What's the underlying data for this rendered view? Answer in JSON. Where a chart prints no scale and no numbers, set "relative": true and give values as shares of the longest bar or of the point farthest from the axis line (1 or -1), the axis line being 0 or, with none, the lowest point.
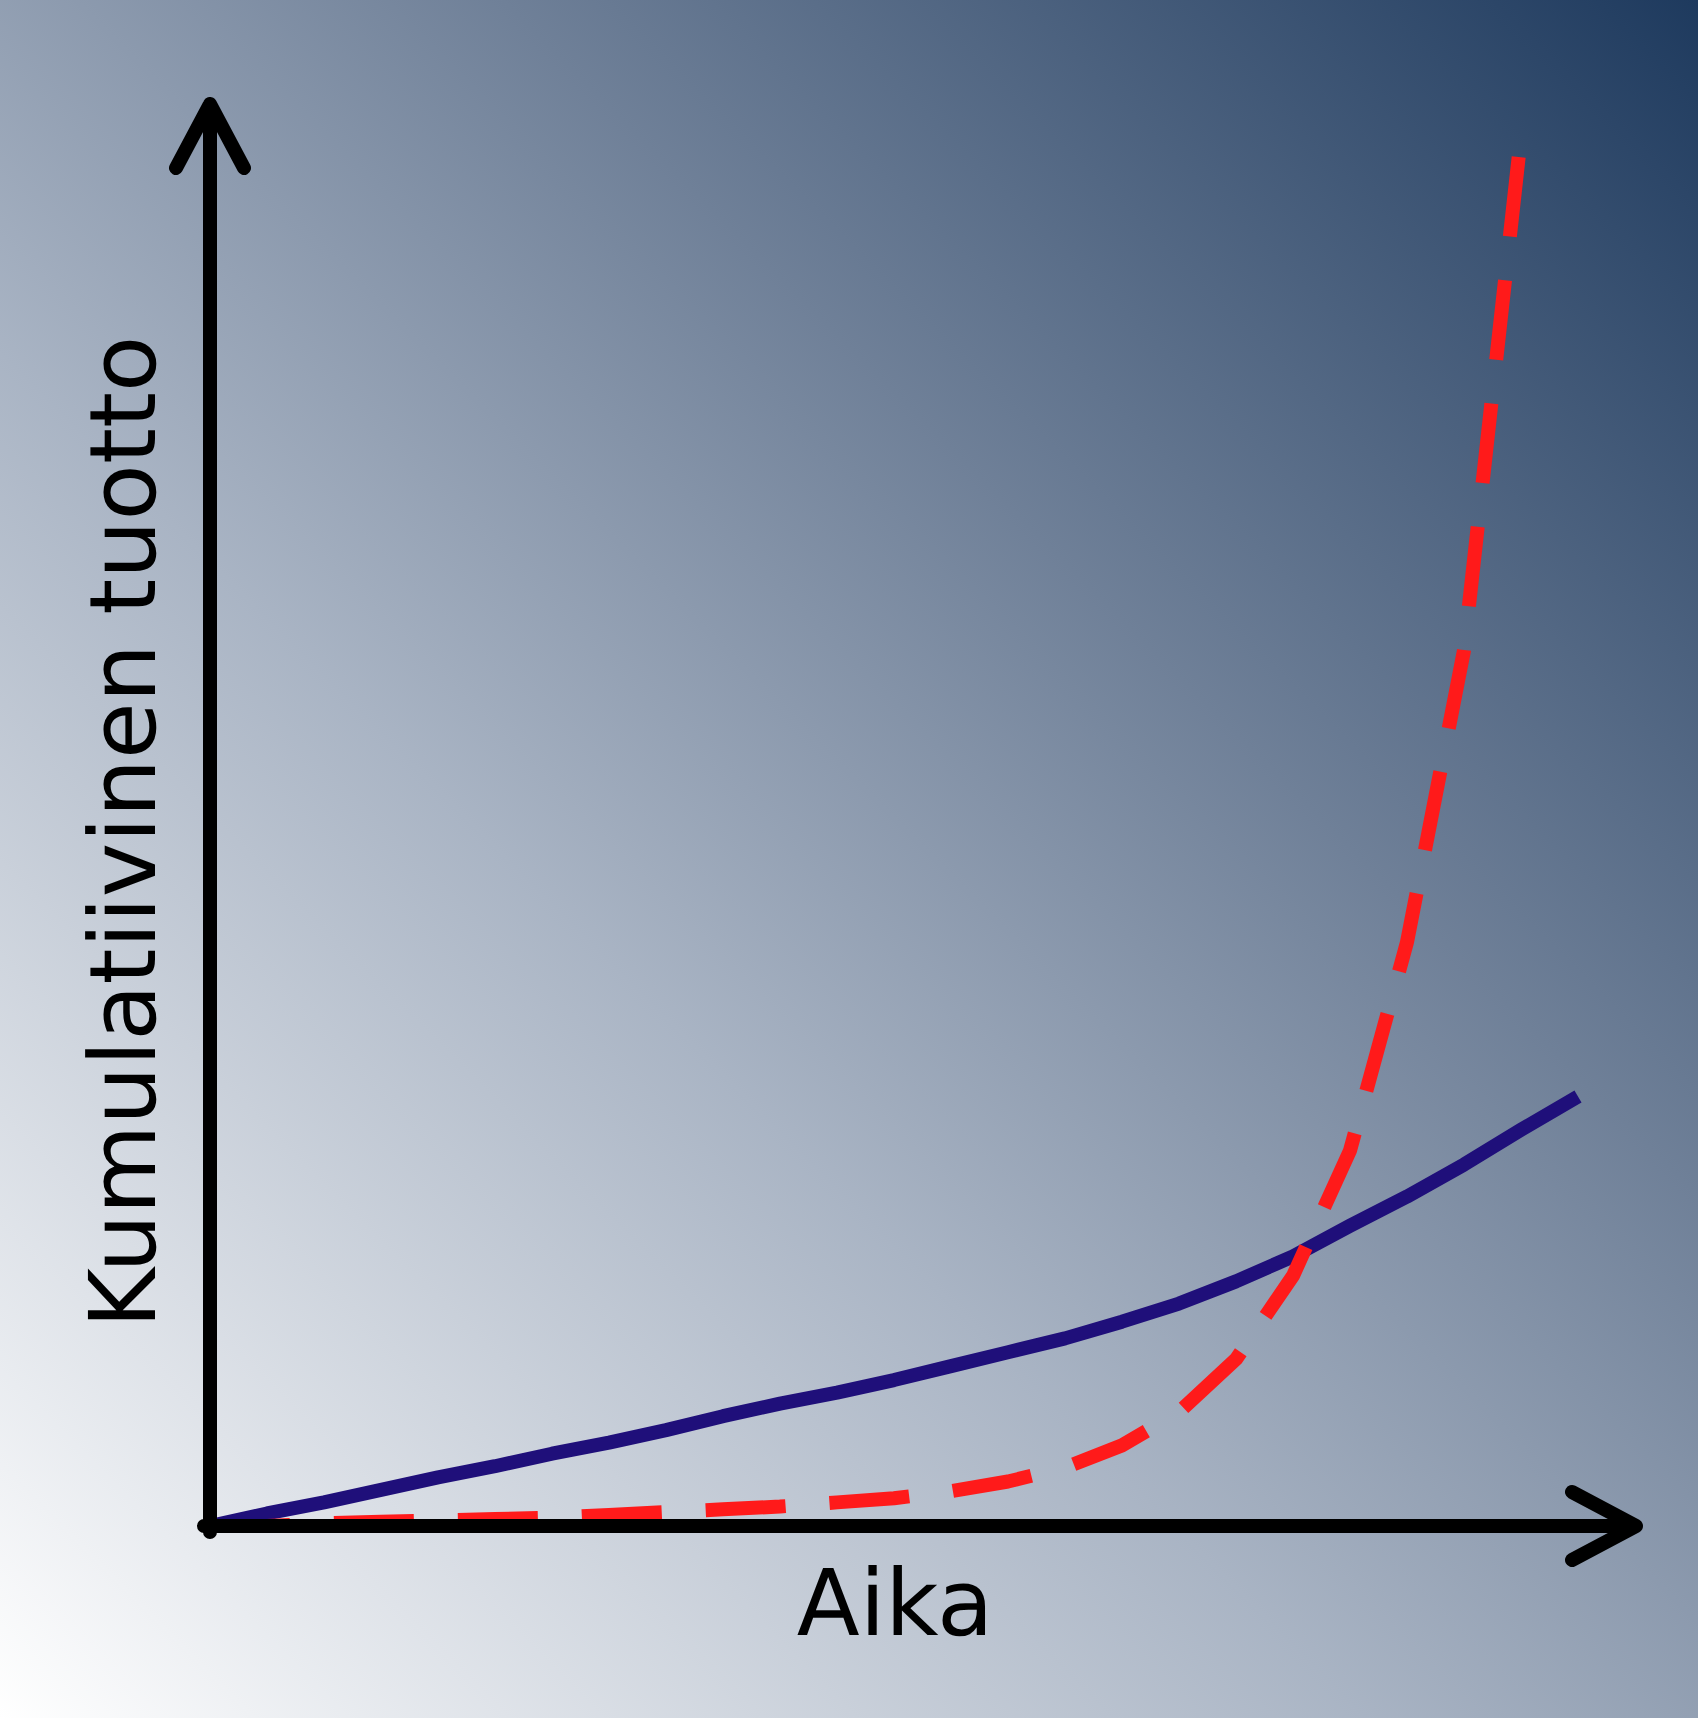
{
  "chart_data": {
    "type": "line",
    "relative": true,
    "xlabel": "Aika",
    "ylabel": "Kumulatiivinen tuotto",
    "tick_labels": false,
    "categories": [
      null,
      null,
      null,
      null,
      null,
      null,
      null,
      null,
      null,
      null,
      null,
      null,
      null,
      null,
      null,
      null,
      null,
      null,
      null,
      null,
      null,
      null,
      null,
      null,
      null
    ],
    "series": [
      {
        "color": "#1f0f7a",
        "line_style": "solid",
        "values": [
          0,
          0.009,
          0.017,
          0.026,
          0.035,
          0.043,
          0.052,
          0.06,
          0.069,
          0.079,
          0.088,
          0.096,
          0.105,
          0.115,
          0.125,
          0.135,
          0.147,
          0.16,
          0.176,
          0.194,
          0.216,
          0.237,
          0.26,
          0.285,
          0.309
        ]
      },
      {
        "color": "#ff1a1a",
        "line_style": "dashed",
        "values": [
          0,
          0,
          0.002,
          0.003,
          0.004,
          0.005,
          0.006,
          0.008,
          0.01,
          0.012,
          0.014,
          0.017,
          0.02,
          0.025,
          0.032,
          0.042,
          0.058,
          0.082,
          0.12,
          0.18,
          0.27,
          0.42,
          0.63,
          1.0,
          null
        ]
      }
    ]
  }
}
